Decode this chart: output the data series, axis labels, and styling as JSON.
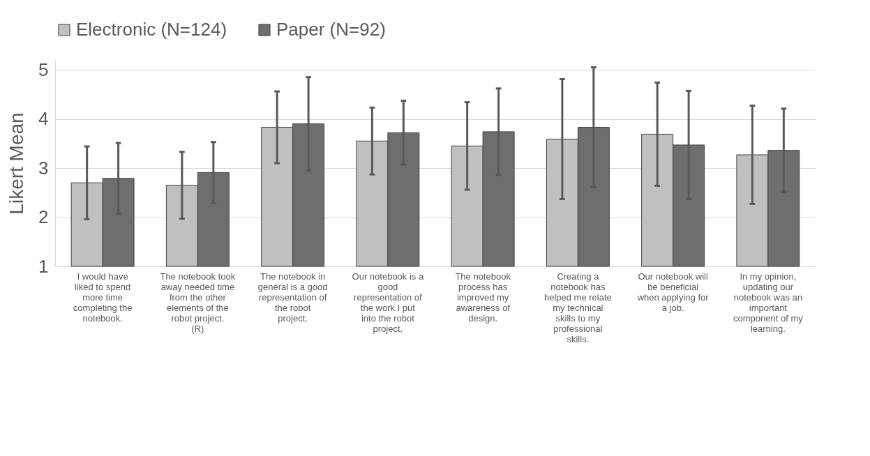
{
  "chart_data": {
    "type": "bar",
    "ylabel": "Likert Mean",
    "categories": [
      "I would have liked to spend more time completing the notebook.",
      "The notebook took away needed time from the other elements of the robot project. (R)",
      "The notebook in general is a good representation of the robot project.",
      "Our notebook is a good representation of the work I put into the robot project.",
      "The notebook process has improved my awareness of design.",
      "Creating a notebook has helped me relate my technical skills to my professional skills.",
      "Our notebook will be beneficial when applying for a job.",
      "In my opinion, updating our notebook was an important component of my learning."
    ],
    "series": [
      {
        "name": "Electronic (N=124)",
        "color": "#c0c0c0",
        "values": [
          2.7,
          2.65,
          3.83,
          3.55,
          3.45,
          3.59,
          3.69,
          3.27
        ],
        "errors": [
          0.74,
          0.68,
          0.73,
          0.68,
          0.89,
          1.22,
          1.05,
          1.0
        ]
      },
      {
        "name": "Paper (N=92)",
        "color": "#6e6e6e",
        "values": [
          2.79,
          2.91,
          3.9,
          3.72,
          3.74,
          3.83,
          3.47,
          3.36
        ],
        "errors": [
          0.72,
          0.62,
          0.95,
          0.65,
          0.88,
          1.22,
          1.1,
          0.85
        ]
      }
    ],
    "ylim": [
      1,
      5.2
    ],
    "yticks": [
      1,
      2,
      3,
      4,
      5
    ],
    "grid": "y",
    "legend": "top"
  }
}
